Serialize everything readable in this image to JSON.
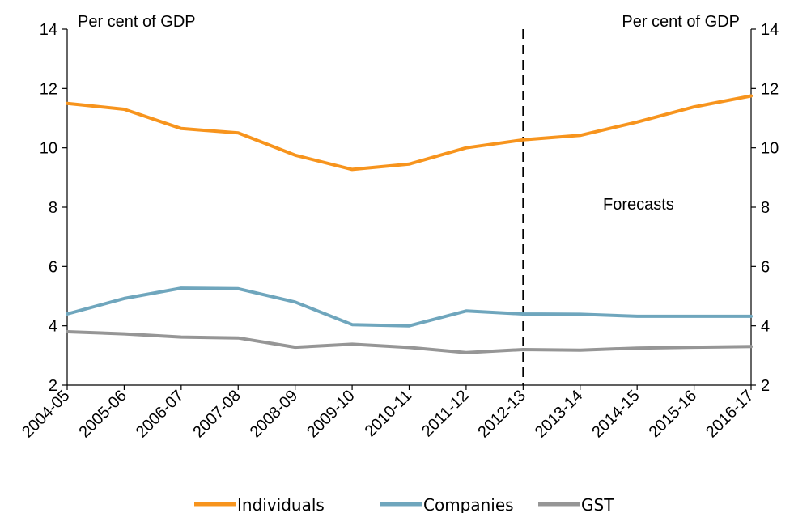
{
  "chart_data": {
    "type": "line",
    "categories": [
      "2004-05",
      "2005-06",
      "2006-07",
      "2007-08",
      "2008-09",
      "2009-10",
      "2010-11",
      "2011-12",
      "2012-13",
      "2013-14",
      "2014-15",
      "2015-16",
      "2016-17"
    ],
    "series": [
      {
        "name": "Individuals",
        "color": "#F7941D",
        "values": [
          11.5,
          11.3,
          10.65,
          10.5,
          9.75,
          9.27,
          9.45,
          10.0,
          10.27,
          10.42,
          10.87,
          11.38,
          11.75
        ]
      },
      {
        "name": "Companies",
        "color": "#6FA6BD",
        "values": [
          4.4,
          4.92,
          5.27,
          5.25,
          4.8,
          4.04,
          4.0,
          4.5,
          4.4,
          4.39,
          4.32,
          4.32,
          4.32
        ]
      },
      {
        "name": "GST",
        "color": "#969696",
        "values": [
          3.8,
          3.73,
          3.62,
          3.59,
          3.28,
          3.38,
          3.27,
          3.1,
          3.2,
          3.18,
          3.25,
          3.28,
          3.3
        ]
      }
    ],
    "ylim": [
      2,
      14
    ],
    "yticks": [
      "2",
      "4",
      "6",
      "8",
      "10",
      "12",
      "14"
    ],
    "ylabel_left": "Per cent of GDP",
    "ylabel_right": "Per cent of GDP",
    "forecast_start_index": 8,
    "annotation": "Forecasts",
    "grid": false,
    "legend_position": "bottom"
  }
}
